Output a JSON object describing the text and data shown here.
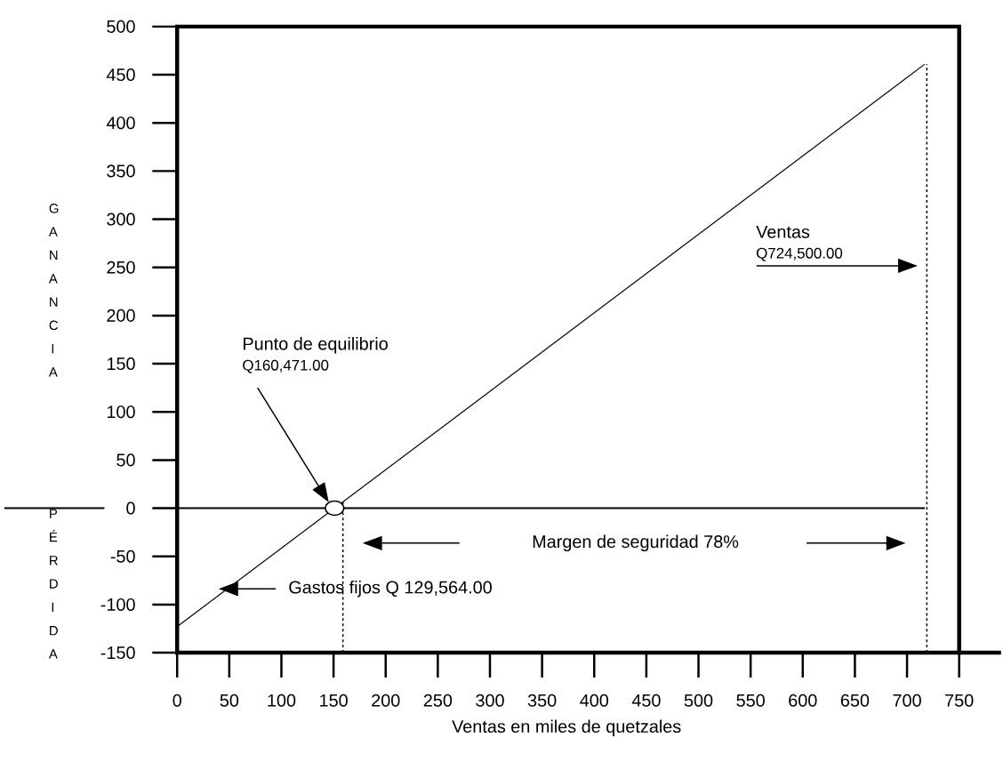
{
  "chart_data": {
    "type": "line",
    "xlabel": "Ventas en miles de quetzales",
    "ylabel": "G A N A N C I A",
    "xlim": [
      0,
      750
    ],
    "ylim": [
      -150,
      500
    ],
    "xticks": [
      0,
      50,
      100,
      150,
      200,
      250,
      300,
      350,
      400,
      450,
      500,
      550,
      600,
      650,
      700,
      750
    ],
    "yticks": [
      -150,
      -100,
      -50,
      0,
      50,
      100,
      150,
      200,
      250,
      300,
      350,
      400,
      450,
      500
    ],
    "series": [
      {
        "color": "#000000",
        "x": [
          0,
          717
        ],
        "values": [
          -123,
          461
        ]
      },
      {
        "type": "scatter",
        "color": "#000000",
        "x": [
          151
        ],
        "values": [
          0
        ]
      }
    ],
    "ref_lines": [
      {
        "axis": "y",
        "value": 0,
        "color": "#000000",
        "line_style": "solid"
      },
      {
        "axis": "x",
        "value": 159,
        "color": "#000000",
        "line_style": "dashed"
      },
      {
        "axis": "x",
        "value": 719,
        "color": "#000000",
        "line_style": "dashed"
      }
    ],
    "annotations": [
      "Punto de equilibrio",
      "Q160,471.00",
      "Ventas",
      "Q724,500.00",
      "Margen de seguridad 78%",
      "Gastos fijos Q 129,564.00",
      "P É R D I D A"
    ],
    "grid": false,
    "line_style": "solid",
    "marker": "none"
  }
}
